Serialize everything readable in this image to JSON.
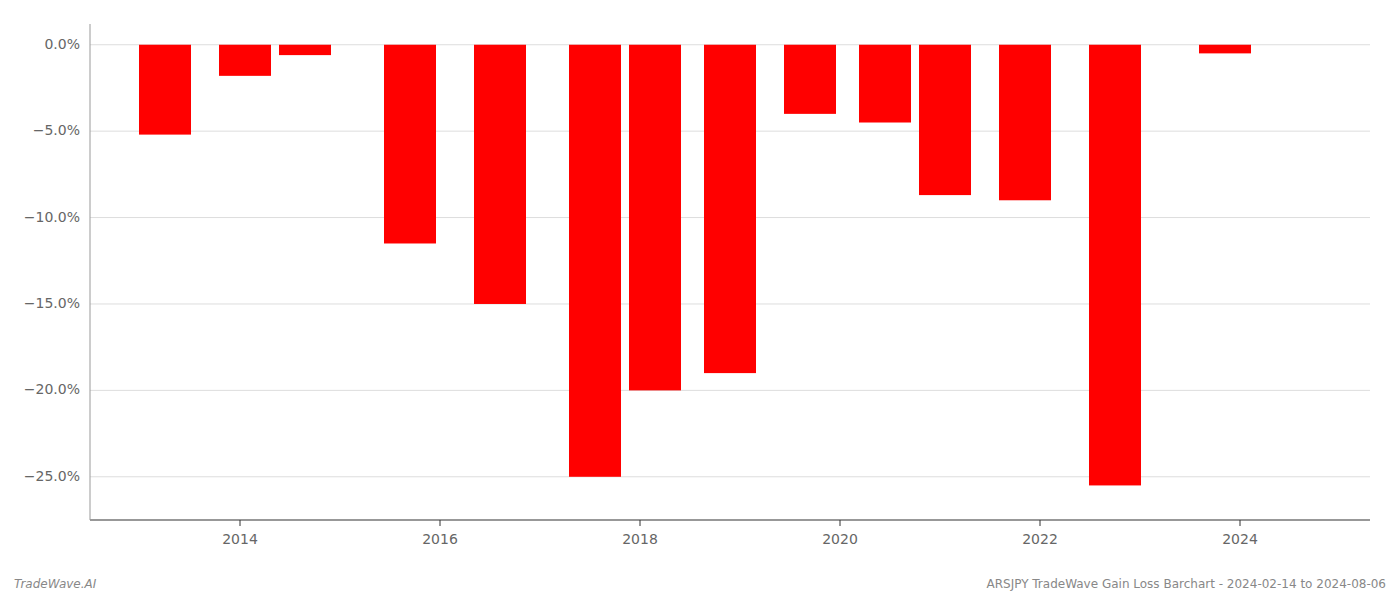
{
  "chart_data": {
    "type": "bar",
    "x": [
      2013.25,
      2014.05,
      2014.65,
      2015.7,
      2016.6,
      2017.55,
      2018.15,
      2018.9,
      2019.7,
      2020.45,
      2021.05,
      2021.85,
      2022.75,
      2023.85
    ],
    "values": [
      -5.2,
      -1.8,
      -0.6,
      -11.5,
      -15.0,
      -25.0,
      -20.0,
      -19.0,
      -4.0,
      -4.5,
      -8.7,
      -9.0,
      -25.5,
      -0.5
    ],
    "color": "#ff0000",
    "xlim": [
      2012.5,
      2025.3
    ],
    "xticks": [
      2014,
      2016,
      2018,
      2020,
      2022,
      2024
    ],
    "ylim": [
      -27.5,
      1.2
    ],
    "yticks": [
      {
        "value": 0.0,
        "label": "0.0%"
      },
      {
        "value": -5.0,
        "label": "−5.0%"
      },
      {
        "value": -10.0,
        "label": "−10.0%"
      },
      {
        "value": -15.0,
        "label": "−15.0%"
      },
      {
        "value": -20.0,
        "label": "−20.0%"
      },
      {
        "value": -25.0,
        "label": "−25.0%"
      }
    ],
    "grid": true,
    "annotations": [
      "TradeWave.AI",
      "ARSJPY TradeWave Gain Loss Barchart - 2024-02-14 to 2024-08-06"
    ]
  }
}
